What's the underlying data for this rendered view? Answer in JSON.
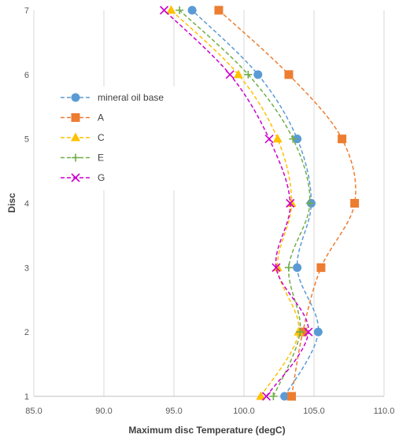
{
  "chart_data": {
    "type": "line",
    "xlabel": "Maximum disc Temperature (degC)",
    "ylabel": "Disc",
    "xlim": [
      85,
      110
    ],
    "ylim": [
      1,
      7
    ],
    "x_ticks": [
      "85.0",
      "90.0",
      "95.0",
      "100.0",
      "105.0",
      "110.0"
    ],
    "y_ticks": [
      "1",
      "2",
      "3",
      "4",
      "5",
      "6",
      "7"
    ],
    "grid": "vertical",
    "legend_position": "top-left",
    "series": [
      {
        "name": "mineral oil base",
        "color": "#5B9BD5",
        "marker": "circle",
        "x": [
          102.9,
          105.3,
          103.8,
          104.8,
          103.8,
          101.0,
          96.3
        ],
        "y": [
          1,
          2,
          3,
          4,
          5,
          6,
          7
        ]
      },
      {
        "name": "A",
        "color": "#ED7D31",
        "marker": "square",
        "x": [
          103.4,
          104.2,
          105.5,
          107.9,
          107.0,
          103.2,
          98.2
        ],
        "y": [
          1,
          2,
          3,
          4,
          5,
          6,
          7
        ]
      },
      {
        "name": "C",
        "color": "#FFC000",
        "marker": "triangle",
        "x": [
          101.2,
          103.9,
          102.4,
          103.4,
          102.4,
          99.6,
          94.8
        ],
        "y": [
          1,
          2,
          3,
          4,
          5,
          6,
          7
        ]
      },
      {
        "name": "E",
        "color": "#70AD47",
        "marker": "plus",
        "x": [
          102.1,
          104.0,
          103.2,
          104.7,
          103.5,
          100.3,
          95.4
        ],
        "y": [
          1,
          2,
          3,
          4,
          5,
          6,
          7
        ]
      },
      {
        "name": "G",
        "color": "#CC00CC",
        "marker": "x",
        "x": [
          101.6,
          104.6,
          102.3,
          103.3,
          101.8,
          99.0,
          94.3
        ],
        "y": [
          1,
          2,
          3,
          4,
          5,
          6,
          7
        ]
      }
    ]
  }
}
